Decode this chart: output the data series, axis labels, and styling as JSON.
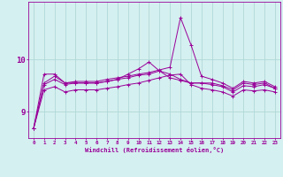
{
  "xlabel": "Windchill (Refroidissement éolien,°C)",
  "x": [
    0,
    1,
    2,
    3,
    4,
    5,
    6,
    7,
    8,
    9,
    10,
    11,
    12,
    13,
    14,
    15,
    16,
    17,
    18,
    19,
    20,
    21,
    22,
    23
  ],
  "line1": [
    8.68,
    9.55,
    9.68,
    9.55,
    9.58,
    9.58,
    9.58,
    9.62,
    9.65,
    9.68,
    9.72,
    9.75,
    9.8,
    9.85,
    10.8,
    10.28,
    9.68,
    9.62,
    9.55,
    9.45,
    9.58,
    9.55,
    9.58,
    9.48
  ],
  "line2": [
    8.68,
    9.52,
    9.62,
    9.52,
    9.55,
    9.55,
    9.55,
    9.58,
    9.62,
    9.65,
    9.7,
    9.72,
    9.78,
    9.72,
    9.62,
    9.55,
    9.55,
    9.52,
    9.48,
    9.38,
    9.5,
    9.48,
    9.52,
    9.45
  ],
  "line3": [
    8.68,
    9.42,
    9.48,
    9.38,
    9.42,
    9.42,
    9.42,
    9.45,
    9.48,
    9.52,
    9.55,
    9.6,
    9.65,
    9.7,
    9.72,
    9.52,
    9.45,
    9.42,
    9.38,
    9.3,
    9.42,
    9.4,
    9.42,
    9.38
  ],
  "line4": [
    8.68,
    9.72,
    9.72,
    9.55,
    9.55,
    9.55,
    9.55,
    9.58,
    9.62,
    9.72,
    9.82,
    9.95,
    9.78,
    9.65,
    9.6,
    9.55,
    9.55,
    9.55,
    9.5,
    9.42,
    9.55,
    9.52,
    9.55,
    9.45
  ],
  "line_color": "#990099",
  "bg_color": "#d5f0f0",
  "grid_color": "#b0d8d8",
  "text_color": "#990099",
  "ylim_min": 8.5,
  "ylim_max": 11.1,
  "yticks": [
    9,
    10
  ],
  "figsize": [
    3.2,
    2.0
  ],
  "dpi": 100
}
